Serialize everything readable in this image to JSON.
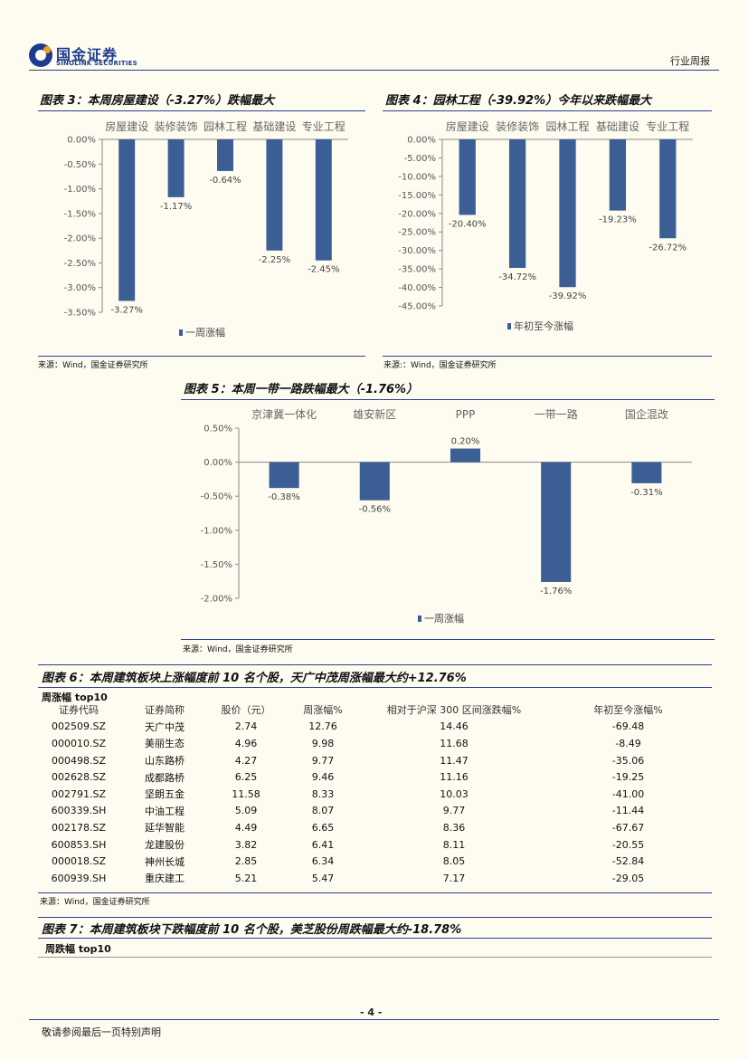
{
  "header": {
    "logo_cn": "国金证券",
    "logo_en": "SINOLINK SECURITIES",
    "report_type": "行业周报"
  },
  "charts": {
    "c3": {
      "title": "图表 3：本周房屋建设（-3.27%）跌幅最大",
      "source": "来源：Wind，国金证券研究所"
    },
    "c4": {
      "title": "图表 4：园林工程（-39.92%）今年以来跌幅最大",
      "source": "来源:：Wind，国金证券研究所"
    },
    "c5": {
      "title": "图表 5：本周一带一路跌幅最大（-1.76%）",
      "source": "来源：Wind，国金证券研究所"
    }
  },
  "chart_data": [
    {
      "type": "bar",
      "id": "c3",
      "categories": [
        "房屋建设",
        "装修装饰",
        "园林工程",
        "基础建设",
        "专业工程"
      ],
      "values": [
        -3.27,
        -1.17,
        -0.64,
        -2.25,
        -2.45
      ],
      "labels": [
        "-3.27%",
        "-1.17%",
        "-0.64%",
        "-2.25%",
        "-2.45%"
      ],
      "ticks": [
        "0.00%",
        "-0.50%",
        "-1.00%",
        "-1.50%",
        "-2.00%",
        "-2.50%",
        "-3.00%",
        "-3.50%"
      ],
      "ylim": [
        -3.5,
        0
      ],
      "legend": "一周涨幅",
      "color": "#3b5e95"
    },
    {
      "type": "bar",
      "id": "c4",
      "categories": [
        "房屋建设",
        "装修装饰",
        "园林工程",
        "基础建设",
        "专业工程"
      ],
      "values": [
        -20.4,
        -34.72,
        -39.92,
        -19.23,
        -26.72
      ],
      "labels": [
        "-20.40%",
        "-34.72%",
        "-39.92%",
        "-19.23%",
        "-26.72%"
      ],
      "ticks": [
        "0.00%",
        "-5.00%",
        "-10.00%",
        "-15.00%",
        "-20.00%",
        "-25.00%",
        "-30.00%",
        "-35.00%",
        "-40.00%",
        "-45.00%"
      ],
      "ylim": [
        -45,
        0
      ],
      "legend": "年初至今涨幅",
      "color": "#3b5e95"
    },
    {
      "type": "bar",
      "id": "c5",
      "categories": [
        "京津冀一体化",
        "雄安新区",
        "PPP",
        "一带一路",
        "国企混改"
      ],
      "values": [
        -0.38,
        -0.56,
        0.2,
        -1.76,
        -0.31
      ],
      "labels": [
        "-0.38%",
        "-0.56%",
        "0.20%",
        "-1.76%",
        "-0.31%"
      ],
      "ticks": [
        "0.50%",
        "0.00%",
        "-0.50%",
        "-1.00%",
        "-1.50%",
        "-2.00%"
      ],
      "ylim": [
        -2.0,
        0.5
      ],
      "legend": "一周涨幅",
      "color": "#3b5e95"
    }
  ],
  "table6": {
    "title": "图表 6：本周建筑板块上涨幅度前 10 名个股，天广中茂周涨幅最大约+12.76%",
    "subtitle": "周涨幅 top10",
    "headers": [
      "证券代码",
      "证券简称",
      "股价（元）",
      "周涨幅%",
      "相对于沪深 300 区间涨跌幅%",
      "年初至今涨幅%"
    ],
    "rows": [
      [
        "002509.SZ",
        "天广中茂",
        "2.74",
        "12.76",
        "14.46",
        "-69.48"
      ],
      [
        "000010.SZ",
        "美丽生态",
        "4.96",
        "9.98",
        "11.68",
        "-8.49"
      ],
      [
        "000498.SZ",
        "山东路桥",
        "4.27",
        "9.77",
        "11.47",
        "-35.06"
      ],
      [
        "002628.SZ",
        "成都路桥",
        "6.25",
        "9.46",
        "11.16",
        "-19.25"
      ],
      [
        "002791.SZ",
        "坚朗五金",
        "11.58",
        "8.33",
        "10.03",
        "-41.00"
      ],
      [
        "600339.SH",
        "中油工程",
        "5.09",
        "8.07",
        "9.77",
        "-11.44"
      ],
      [
        "002178.SZ",
        "延华智能",
        "4.49",
        "6.65",
        "8.36",
        "-67.67"
      ],
      [
        "600853.SH",
        "龙建股份",
        "3.82",
        "6.41",
        "8.11",
        "-20.55"
      ],
      [
        "000018.SZ",
        "神州长城",
        "2.85",
        "6.34",
        "8.05",
        "-52.84"
      ],
      [
        "600939.SH",
        "重庆建工",
        "5.21",
        "5.47",
        "7.17",
        "-29.05"
      ]
    ],
    "source": "来源：Wind，国金证券研究所"
  },
  "table7": {
    "title": "图表 7：本周建筑板块下跌幅度前 10 名个股，美芝股份周跌幅最大约-18.78%",
    "subtitle": "周跌幅 top10"
  },
  "footer": {
    "page": "- 4 -",
    "disclaimer": "敬请参阅最后一页特别声明"
  }
}
